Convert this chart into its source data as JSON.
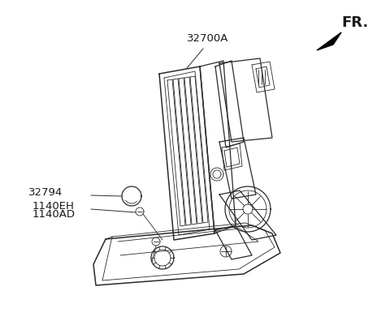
{
  "background_color": "#ffffff",
  "label_32700A": "32700A",
  "label_32794": "32794",
  "label_1140EH": "1140EH",
  "label_1140AD": "1140AD",
  "label_FR": "FR.",
  "fig_width": 4.8,
  "fig_height": 3.96,
  "dpi": 100,
  "line_color": "#2a2a2a",
  "text_color": "#1a1a1a",
  "arrow_color": "#000000",
  "lw_main": 0.9,
  "lw_thin": 0.6,
  "lw_thick": 1.1
}
